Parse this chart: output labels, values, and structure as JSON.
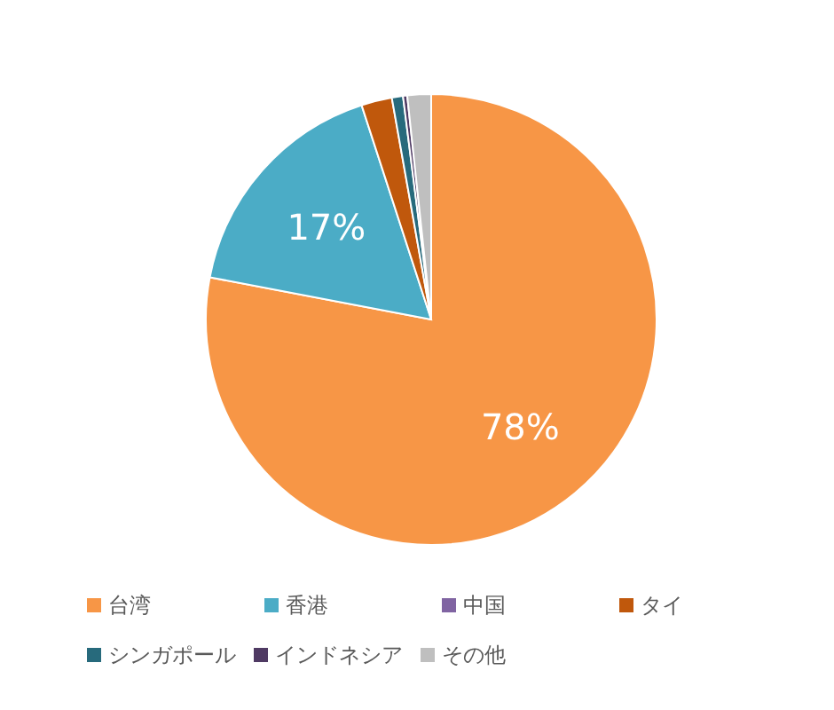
{
  "chart_data": {
    "type": "pie",
    "categories": [
      "台湾",
      "香港",
      "中国",
      "タイ",
      "シンガポール",
      "インドネシア",
      "その他"
    ],
    "values": [
      78,
      17,
      null,
      2.2,
      0.8,
      0.3,
      1.7
    ],
    "colors": [
      "#f79646",
      "#4bacc6",
      "#8064a2",
      "#c0580c",
      "#276a7c",
      "#4f3a63",
      "#bfbfbf"
    ],
    "value_labels": [
      "78%",
      "17%",
      null,
      null,
      null,
      null,
      null
    ],
    "legend": "bottom"
  }
}
